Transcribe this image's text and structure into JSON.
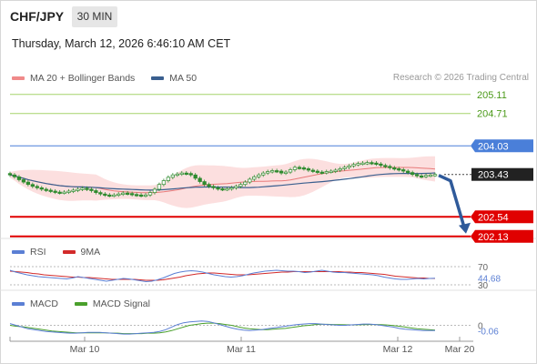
{
  "header": {
    "symbol": "CHF/JPY",
    "timeframe": "30 MIN",
    "timestamp": "Thursday, March 12, 2026 6:46:10 AM CET"
  },
  "main_legend": {
    "bb_label": "MA 20 + Bollinger Bands",
    "ma50_label": "MA 50",
    "credit": "Research © 2026 Trading Central"
  },
  "rsi_legend": {
    "rsi_label": "RSI",
    "ma_label": "9MA"
  },
  "macd_legend": {
    "macd_label": "MACD",
    "signal_label": "MACD Signal"
  },
  "colors": {
    "bb_fill": "#fcd9d9",
    "ma20": "#e87a7a",
    "ma50": "#3a5f8f",
    "candle": "#2e8b2e",
    "resistance": "#a5d36b",
    "pivot": "#4a7fd9",
    "support": "#e00000",
    "arrow": "#2f5a9a",
    "current": "#222222",
    "rsi": "#5b7fd4",
    "rsi_ma": "#d22a2a",
    "macd": "#5b7fd4",
    "macd_signal": "#4aa02c"
  },
  "chart_data": [
    {
      "type": "candlestick",
      "x_ticks": [
        "Mar 10",
        "Mar 11",
        "Mar 12",
        "Mar 20"
      ],
      "levels": [
        {
          "label": "205.11",
          "value": 205.11,
          "kind": "resistance"
        },
        {
          "label": "204.71",
          "value": 204.71,
          "kind": "resistance"
        },
        {
          "label": "204.03",
          "value": 204.03,
          "kind": "pivot"
        },
        {
          "label": "203.43",
          "value": 203.43,
          "kind": "current"
        },
        {
          "label": "202.54",
          "value": 202.54,
          "kind": "support"
        },
        {
          "label": "202.13",
          "value": 202.13,
          "kind": "support"
        }
      ],
      "ylim": [
        202.03,
        205.43
      ],
      "closes": [
        203.42,
        203.38,
        203.32,
        203.27,
        203.22,
        203.18,
        203.15,
        203.12,
        203.1,
        203.08,
        203.06,
        203.05,
        203.06,
        203.08,
        203.1,
        203.12,
        203.14,
        203.12,
        203.09,
        203.05,
        203.02,
        203.0,
        202.99,
        203.0,
        203.02,
        203.04,
        203.03,
        203.01,
        203.0,
        202.99,
        203.0,
        203.05,
        203.12,
        203.22,
        203.3,
        203.37,
        203.42,
        203.44,
        203.46,
        203.45,
        203.42,
        203.35,
        203.28,
        203.22,
        203.18,
        203.15,
        203.13,
        203.12,
        203.13,
        203.15,
        203.18,
        203.22,
        203.27,
        203.33,
        203.38,
        203.42,
        203.46,
        203.49,
        203.51,
        203.5,
        203.46,
        203.48,
        203.53,
        203.58,
        203.57,
        203.55,
        203.52,
        203.5,
        203.48,
        203.47,
        203.49,
        203.5,
        203.52,
        203.55,
        203.58,
        203.61,
        203.64,
        203.66,
        203.67,
        203.68,
        203.67,
        203.65,
        203.62,
        203.6,
        203.57,
        203.55,
        203.53,
        203.5,
        203.47,
        203.43,
        203.4,
        203.39,
        203.41,
        203.42,
        203.43
      ]
    },
    {
      "type": "line",
      "name_series": [
        "RSI",
        "9MA"
      ],
      "reference_lines": [
        70,
        30
      ],
      "current_value": 44.68,
      "ylim": [
        20,
        80
      ],
      "rsi": [
        62,
        58,
        55,
        52,
        50,
        48,
        47,
        46,
        45,
        44,
        43,
        45,
        48,
        46,
        44,
        42,
        40,
        38,
        40,
        42,
        44,
        43,
        41,
        39,
        37,
        38,
        41,
        45,
        50,
        55,
        58,
        60,
        61,
        60,
        58,
        55,
        52,
        50,
        48,
        47,
        48,
        50,
        53,
        56,
        58,
        60,
        61,
        62,
        61,
        60,
        60,
        59,
        57,
        58,
        60,
        62,
        60,
        58,
        57,
        57,
        56,
        55,
        54,
        53,
        52,
        50,
        47,
        45,
        43,
        42,
        42,
        43,
        44,
        43,
        44,
        44.68
      ],
      "ma": [
        60,
        59,
        58,
        57,
        55,
        54,
        52,
        51,
        50,
        49,
        48,
        47,
        47,
        46,
        46,
        45,
        44,
        43,
        42,
        42,
        42,
        42,
        42,
        41,
        40,
        40,
        40,
        41,
        43,
        45,
        47,
        50,
        52,
        54,
        55,
        56,
        56,
        55,
        54,
        53,
        52,
        52,
        52,
        53,
        54,
        55,
        56,
        57,
        58,
        58,
        59,
        59,
        59,
        59,
        59,
        59,
        59,
        59,
        59,
        58,
        58,
        57,
        57,
        56,
        55,
        54,
        53,
        51,
        49,
        48,
        47,
        46,
        45,
        45,
        44,
        44
      ]
    },
    {
      "type": "line",
      "name_series": [
        "MACD",
        "MACD Signal"
      ],
      "zero_label": "0",
      "current_value": -0.06,
      "ylim": [
        -0.12,
        0.11
      ],
      "macd": [
        0.02,
        0.0,
        -0.02,
        -0.04,
        -0.05,
        -0.06,
        -0.07,
        -0.075,
        -0.08,
        -0.085,
        -0.09,
        -0.09,
        -0.085,
        -0.08,
        -0.08,
        -0.08,
        -0.085,
        -0.09,
        -0.095,
        -0.1,
        -0.1,
        -0.095,
        -0.09,
        -0.085,
        -0.08,
        -0.07,
        -0.05,
        -0.02,
        0.01,
        0.03,
        0.04,
        0.045,
        0.05,
        0.045,
        0.03,
        0.01,
        -0.01,
        -0.03,
        -0.045,
        -0.055,
        -0.06,
        -0.055,
        -0.05,
        -0.04,
        -0.03,
        -0.02,
        -0.01,
        0.0,
        0.01,
        0.015,
        0.02,
        0.02,
        0.015,
        0.01,
        0.005,
        0.0,
        0.0,
        0.005,
        0.01,
        0.015,
        0.015,
        0.01,
        0.0,
        -0.01,
        -0.02,
        -0.035,
        -0.045,
        -0.05,
        -0.055,
        -0.06,
        -0.06,
        -0.06
      ],
      "signal": [
        0.0,
        -0.01,
        -0.015,
        -0.025,
        -0.035,
        -0.045,
        -0.055,
        -0.065,
        -0.07,
        -0.075,
        -0.08,
        -0.085,
        -0.085,
        -0.085,
        -0.085,
        -0.085,
        -0.085,
        -0.09,
        -0.09,
        -0.095,
        -0.095,
        -0.095,
        -0.095,
        -0.09,
        -0.09,
        -0.085,
        -0.075,
        -0.06,
        -0.04,
        -0.02,
        0.0,
        0.01,
        0.02,
        0.025,
        0.025,
        0.02,
        0.01,
        0.0,
        -0.015,
        -0.03,
        -0.04,
        -0.045,
        -0.05,
        -0.05,
        -0.045,
        -0.04,
        -0.035,
        -0.025,
        -0.015,
        -0.005,
        0.0,
        0.01,
        0.012,
        0.012,
        0.01,
        0.008,
        0.006,
        0.005,
        0.006,
        0.008,
        0.01,
        0.01,
        0.008,
        0.004,
        -0.002,
        -0.01,
        -0.02,
        -0.03,
        -0.04,
        -0.045,
        -0.05,
        -0.055
      ]
    }
  ]
}
